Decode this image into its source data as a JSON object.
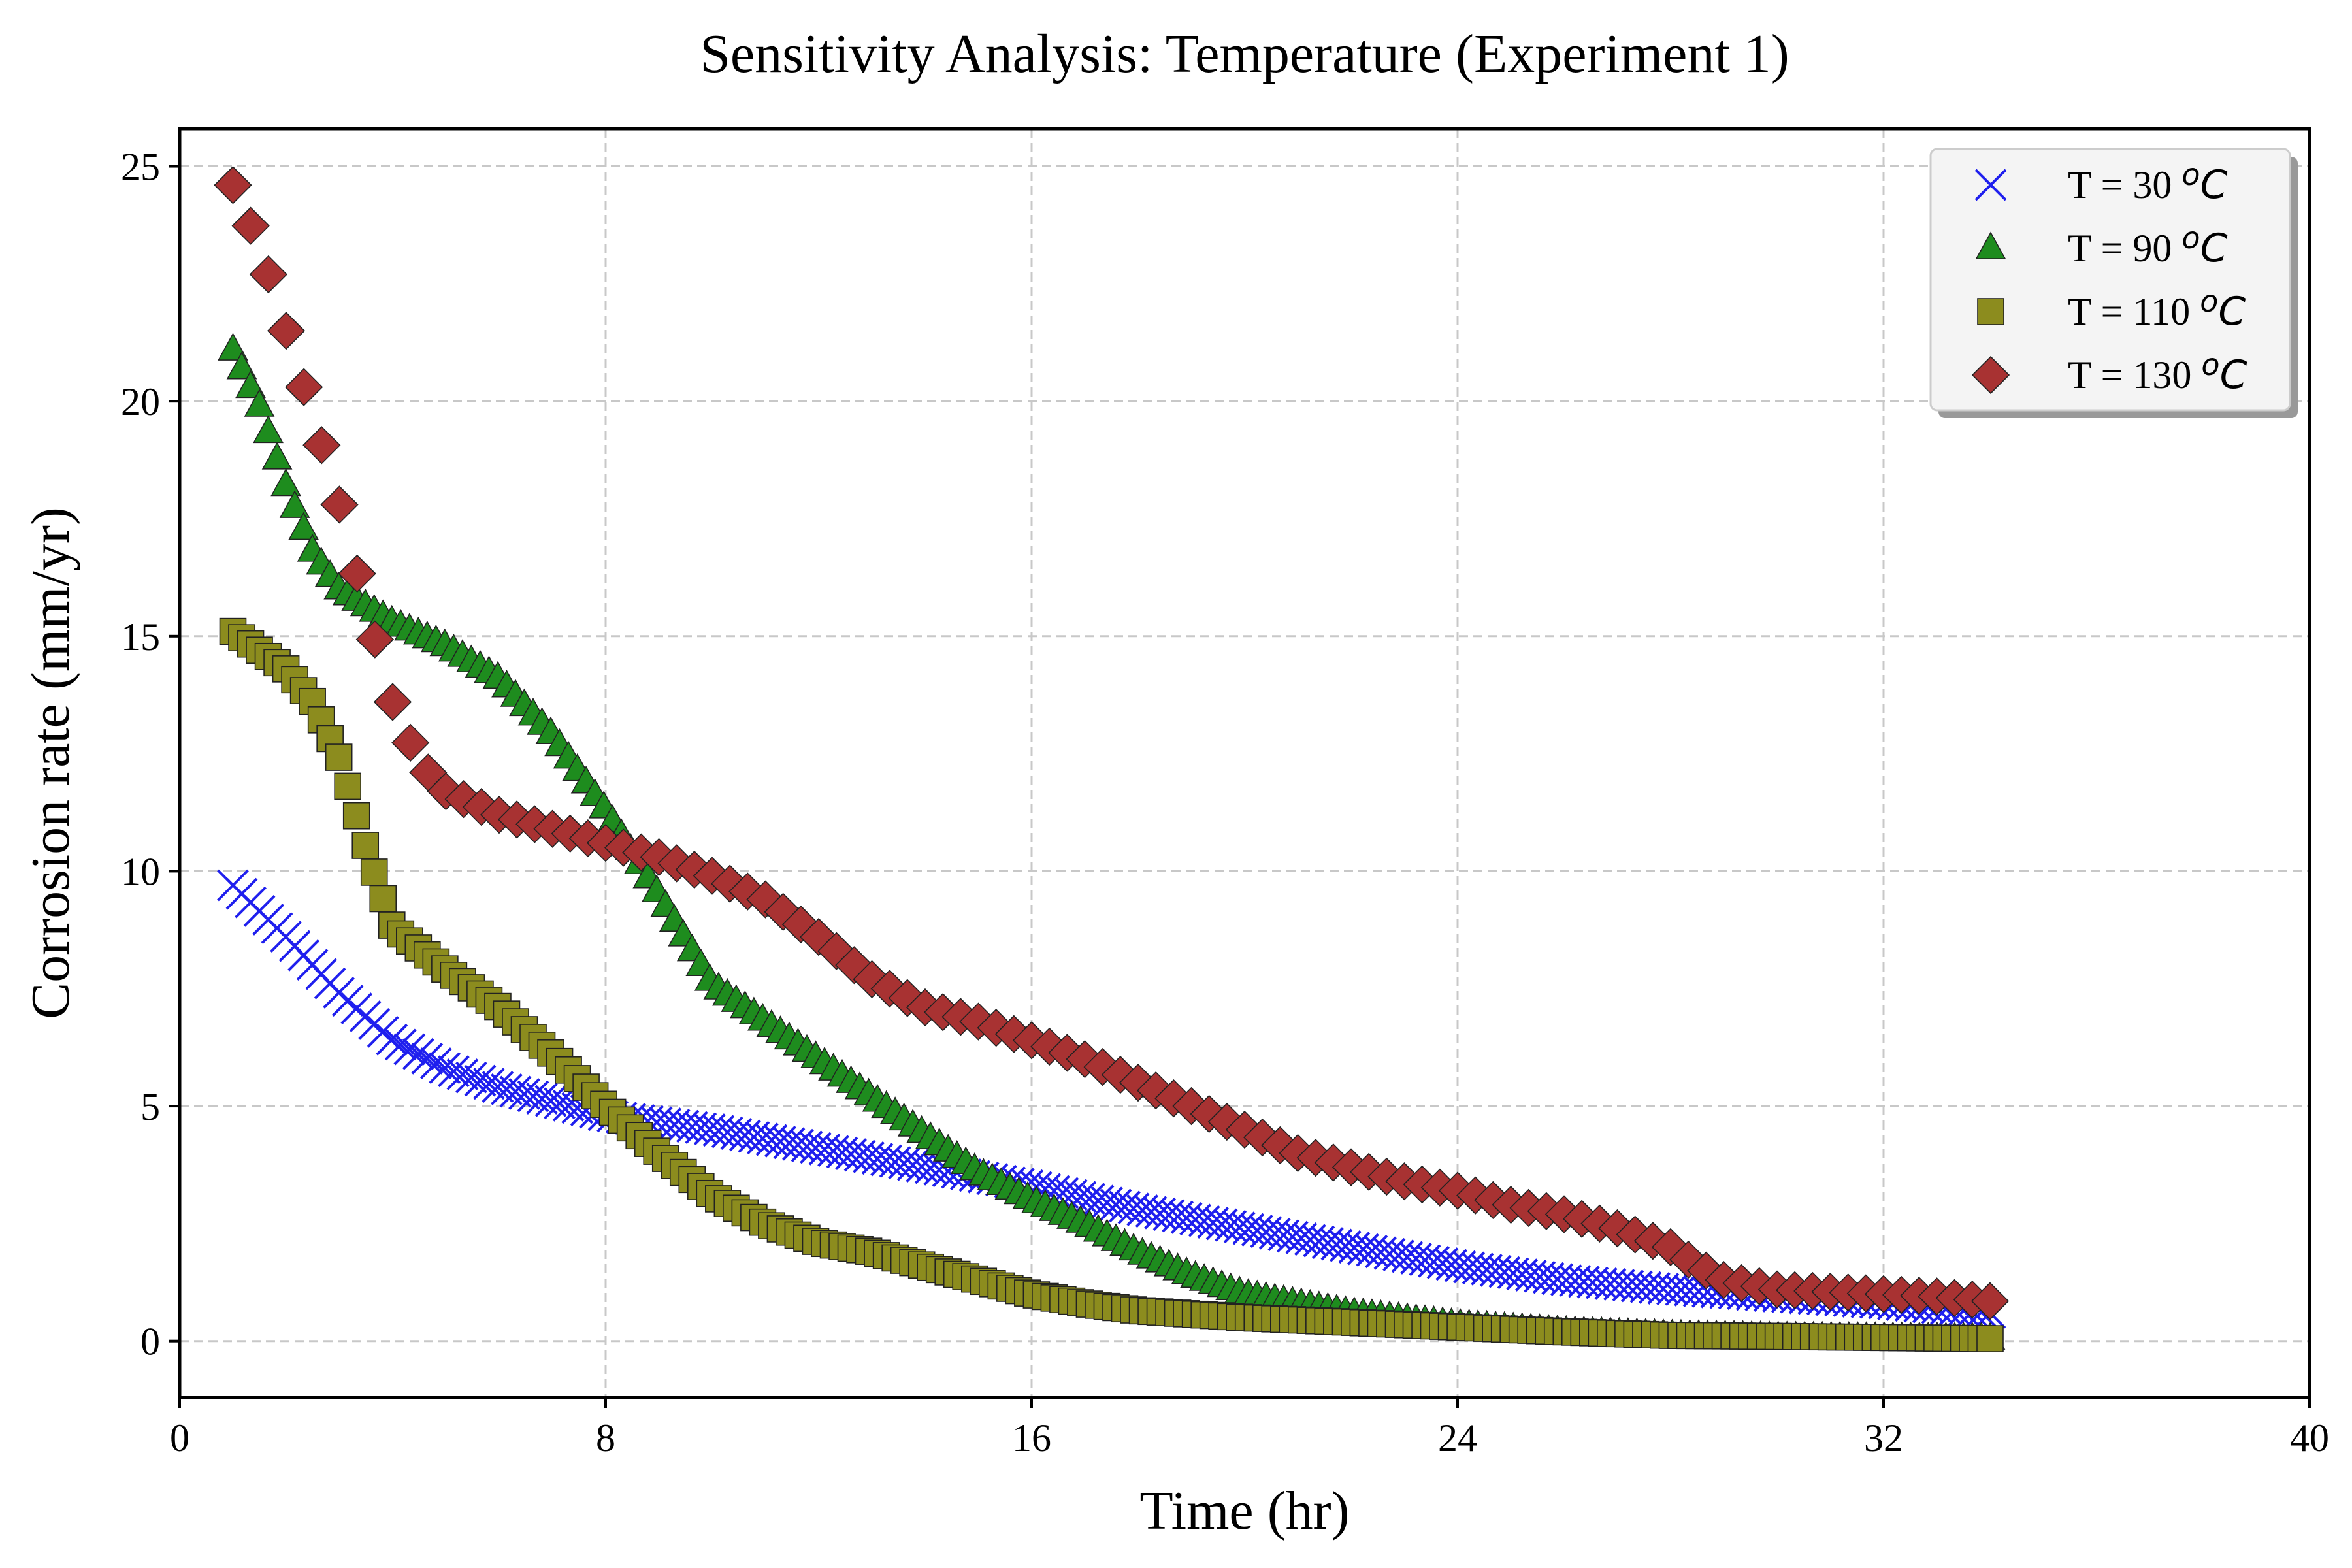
{
  "chart_data": {
    "type": "scatter",
    "title": "Sensitivity Analysis: Temperature (Experiment 1)",
    "xlabel": "Time (hr)",
    "ylabel": "Corrosion rate (mm/yr)",
    "xlim": [
      0,
      40
    ],
    "ylim": [
      -1.2,
      25.8
    ],
    "xticks": [
      0,
      8,
      16,
      24,
      32,
      40
    ],
    "yticks": [
      0,
      5,
      10,
      15,
      20,
      25
    ],
    "grid": true,
    "legend_position": "top-right",
    "series": [
      {
        "name": "T = 30 °C",
        "label_prefix": "T = 30 ",
        "marker": "x",
        "color": "#1f1fee",
        "x_start": 1.0,
        "x_end": 34.0,
        "n_points": 200,
        "key_points": [
          [
            1.0,
            9.7
          ],
          [
            2.0,
            8.6
          ],
          [
            3.0,
            7.4
          ],
          [
            4.0,
            6.4
          ],
          [
            5.0,
            5.8
          ],
          [
            6.0,
            5.4
          ],
          [
            7.0,
            5.1
          ],
          [
            8.0,
            4.8
          ],
          [
            10.0,
            4.5
          ],
          [
            12.0,
            4.1
          ],
          [
            14.0,
            3.7
          ],
          [
            16.0,
            3.3
          ],
          [
            18.0,
            2.8
          ],
          [
            20.0,
            2.4
          ],
          [
            22.0,
            2.0
          ],
          [
            24.0,
            1.6
          ],
          [
            26.0,
            1.3
          ],
          [
            28.0,
            1.1
          ],
          [
            30.0,
            0.95
          ],
          [
            32.0,
            0.8
          ],
          [
            34.0,
            0.6
          ]
        ]
      },
      {
        "name": "T = 90 °C",
        "label_prefix": "T = 90 ",
        "marker": "triangle",
        "color": "#1e8c1e",
        "x_start": 1.0,
        "x_end": 34.0,
        "n_points": 200,
        "key_points": [
          [
            1.0,
            21.1
          ],
          [
            1.5,
            19.9
          ],
          [
            2.0,
            18.2
          ],
          [
            2.5,
            16.8
          ],
          [
            3.0,
            16.0
          ],
          [
            4.0,
            15.3
          ],
          [
            5.0,
            14.8
          ],
          [
            6.0,
            14.1
          ],
          [
            7.0,
            12.9
          ],
          [
            8.0,
            11.3
          ],
          [
            9.0,
            9.5
          ],
          [
            10.0,
            7.6
          ],
          [
            11.0,
            6.8
          ],
          [
            12.0,
            6.0
          ],
          [
            13.0,
            5.2
          ],
          [
            14.0,
            4.4
          ],
          [
            15.0,
            3.6
          ],
          [
            16.0,
            3.0
          ],
          [
            17.0,
            2.5
          ],
          [
            18.0,
            1.9
          ],
          [
            19.0,
            1.4
          ],
          [
            20.0,
            1.0
          ],
          [
            21.0,
            0.8
          ],
          [
            22.0,
            0.6
          ],
          [
            24.0,
            0.35
          ],
          [
            26.0,
            0.2
          ],
          [
            28.0,
            0.12
          ],
          [
            30.0,
            0.08
          ],
          [
            34.0,
            0.05
          ]
        ]
      },
      {
        "name": "T = 110 °C",
        "label_prefix": "T = 110 ",
        "marker": "square",
        "color": "#8c8c1e",
        "x_start": 1.0,
        "x_end": 34.0,
        "n_points": 200,
        "key_points": [
          [
            1.0,
            15.1
          ],
          [
            2.0,
            14.3
          ],
          [
            2.5,
            13.6
          ],
          [
            3.0,
            12.4
          ],
          [
            3.5,
            10.5
          ],
          [
            4.0,
            8.8
          ],
          [
            5.0,
            7.9
          ],
          [
            6.0,
            7.1
          ],
          [
            7.0,
            6.1
          ],
          [
            8.0,
            5.0
          ],
          [
            9.0,
            4.0
          ],
          [
            10.0,
            3.1
          ],
          [
            11.0,
            2.5
          ],
          [
            12.0,
            2.1
          ],
          [
            13.0,
            1.9
          ],
          [
            14.0,
            1.6
          ],
          [
            15.0,
            1.3
          ],
          [
            16.0,
            1.0
          ],
          [
            17.0,
            0.8
          ],
          [
            18.0,
            0.65
          ],
          [
            20.0,
            0.5
          ],
          [
            22.0,
            0.4
          ],
          [
            24.0,
            0.3
          ],
          [
            26.0,
            0.2
          ],
          [
            28.0,
            0.12
          ],
          [
            30.0,
            0.1
          ],
          [
            34.0,
            0.05
          ]
        ]
      },
      {
        "name": "T = 130 °C",
        "label_prefix": "T = 130 ",
        "marker": "diamond",
        "color": "#a83232",
        "x_start": 1.0,
        "x_end": 34.0,
        "n_points": 100,
        "key_points": [
          [
            1.0,
            24.6
          ],
          [
            1.5,
            23.3
          ],
          [
            2.0,
            21.5
          ],
          [
            2.5,
            19.7
          ],
          [
            3.0,
            17.8
          ],
          [
            3.5,
            15.6
          ],
          [
            4.0,
            13.6
          ],
          [
            4.5,
            12.3
          ],
          [
            5.0,
            11.7
          ],
          [
            6.0,
            11.2
          ],
          [
            7.0,
            10.9
          ],
          [
            8.0,
            10.6
          ],
          [
            9.0,
            10.3
          ],
          [
            10.0,
            9.9
          ],
          [
            11.0,
            9.4
          ],
          [
            12.0,
            8.6
          ],
          [
            13.0,
            7.7
          ],
          [
            14.0,
            7.1
          ],
          [
            15.0,
            6.8
          ],
          [
            16.0,
            6.4
          ],
          [
            17.0,
            6.0
          ],
          [
            18.0,
            5.5
          ],
          [
            19.0,
            5.0
          ],
          [
            20.0,
            4.5
          ],
          [
            21.0,
            4.0
          ],
          [
            22.0,
            3.7
          ],
          [
            23.0,
            3.4
          ],
          [
            24.0,
            3.2
          ],
          [
            25.0,
            2.9
          ],
          [
            26.0,
            2.7
          ],
          [
            27.0,
            2.4
          ],
          [
            28.0,
            2.0
          ],
          [
            28.5,
            1.6
          ],
          [
            29.0,
            1.3
          ],
          [
            30.0,
            1.1
          ],
          [
            31.0,
            1.05
          ],
          [
            32.0,
            1.0
          ],
          [
            33.0,
            0.95
          ],
          [
            34.0,
            0.85
          ]
        ]
      }
    ]
  }
}
